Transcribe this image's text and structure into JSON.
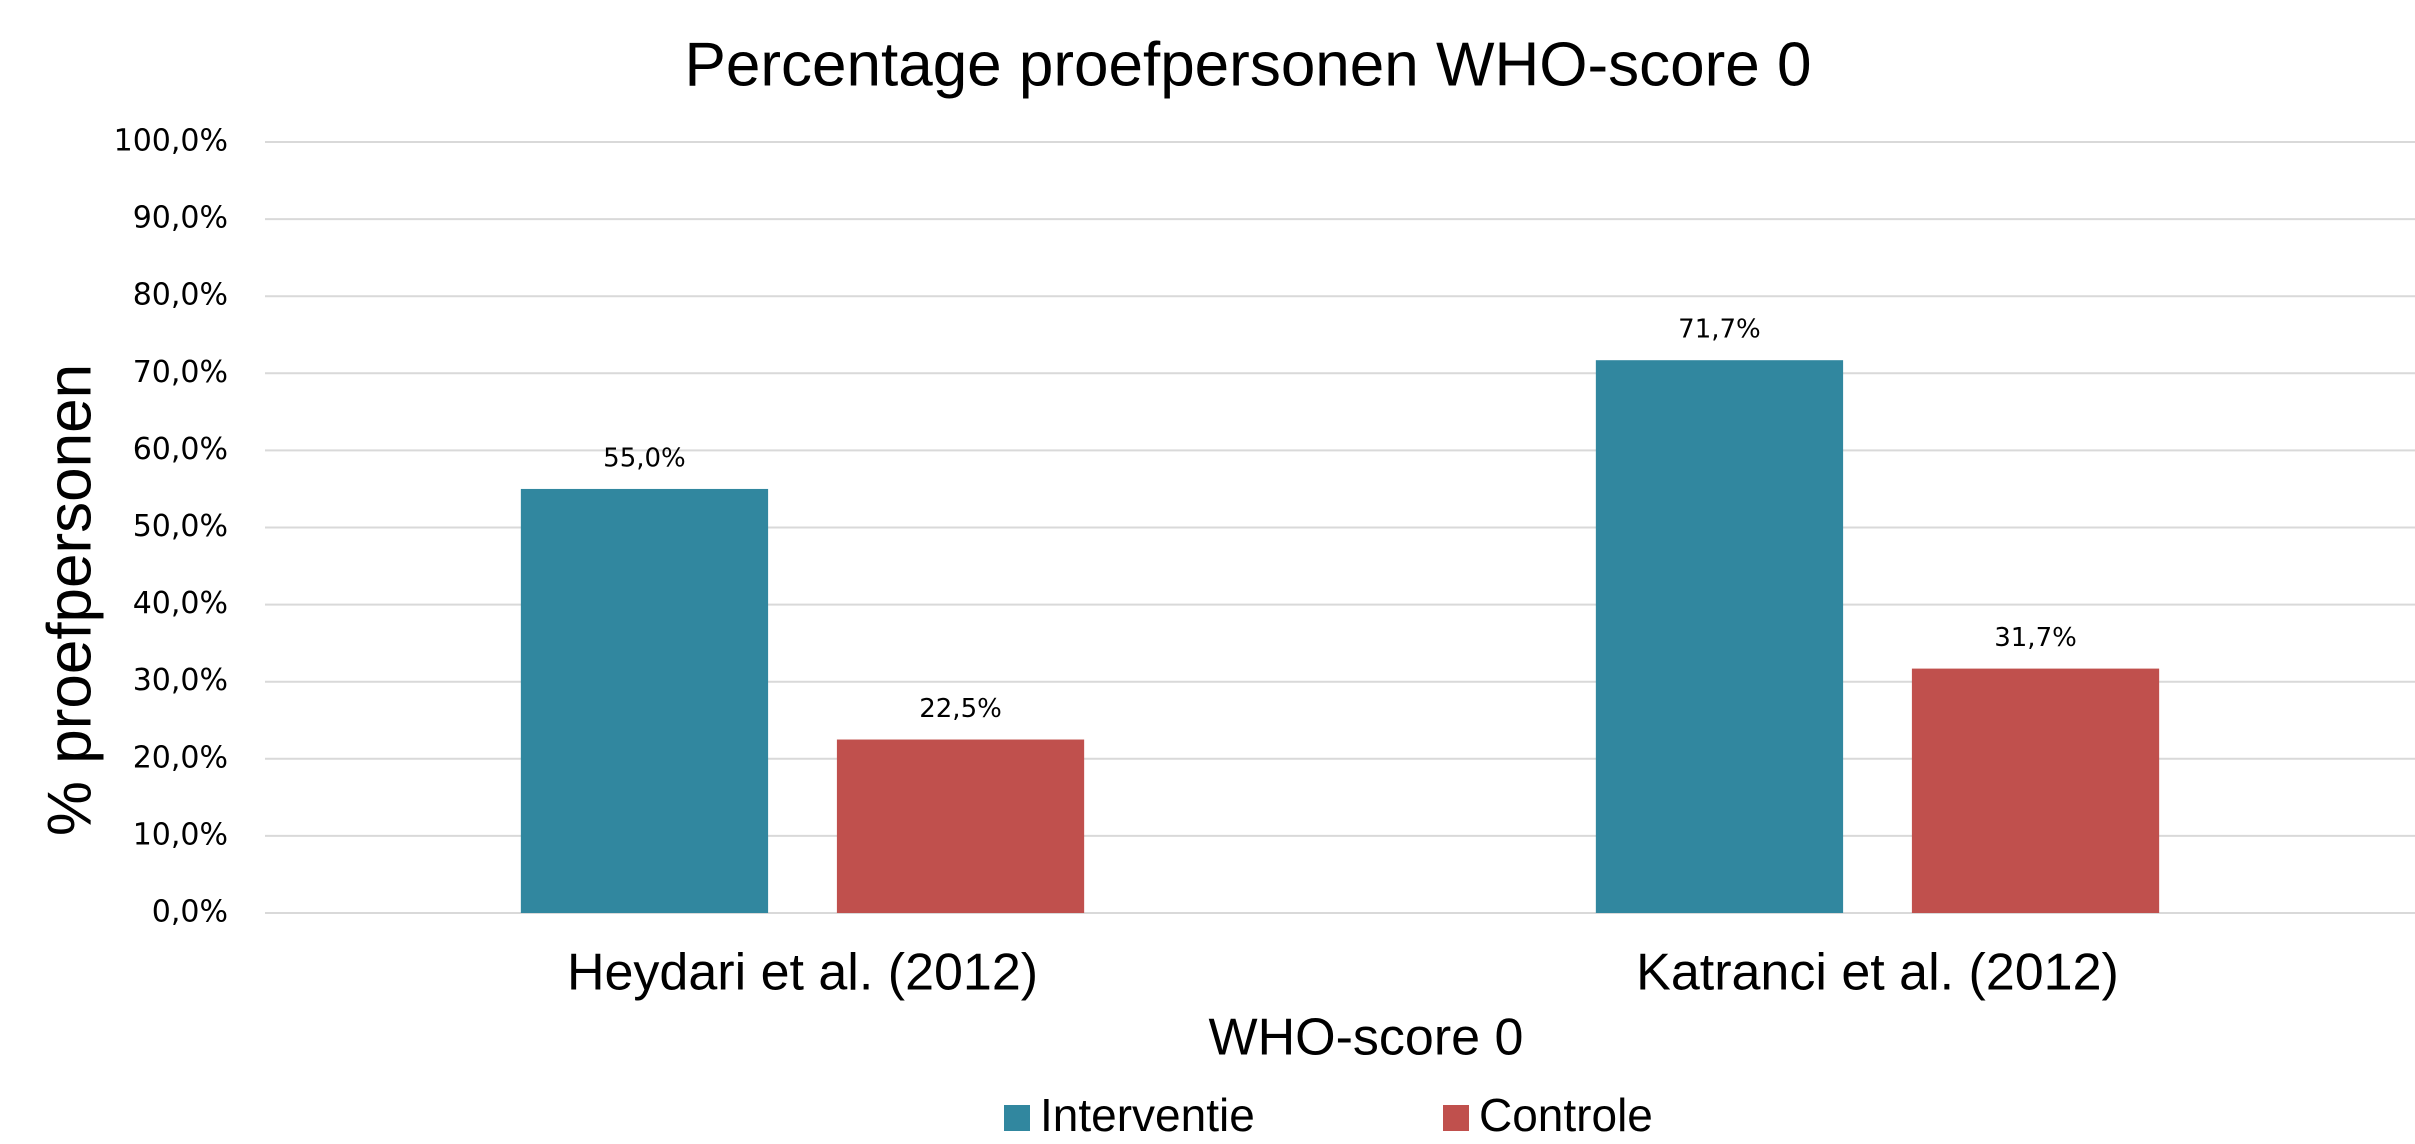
{
  "chart_data": {
    "type": "bar",
    "title": "Percentage proefpersonen WHO-score 0",
    "x_label": "WHO-score 0",
    "y_label": "% proefpersonen",
    "categories": [
      "Heydari et al. (2012)",
      "Katranci et al. (2012)"
    ],
    "series": [
      {
        "name": "Interventie",
        "color": "#31879f",
        "values": [
          55.0,
          71.7
        ],
        "value_labels": [
          "55,0%",
          "71,7%"
        ]
      },
      {
        "name": "Controle",
        "color": "#c0504d",
        "values": [
          22.5,
          31.7
        ],
        "value_labels": [
          "22,5%",
          "31,7%"
        ]
      }
    ],
    "ylim": [
      0,
      100
    ],
    "yticks": [
      {
        "value": 0,
        "label": "0,0%"
      },
      {
        "value": 10,
        "label": "10,0%"
      },
      {
        "value": 20,
        "label": "20,0%"
      },
      {
        "value": 30,
        "label": "30,0%"
      },
      {
        "value": 40,
        "label": "40,0%"
      },
      {
        "value": 50,
        "label": "50,0%"
      },
      {
        "value": 60,
        "label": "60,0%"
      },
      {
        "value": 70,
        "label": "70,0%"
      },
      {
        "value": 80,
        "label": "80,0%"
      },
      {
        "value": 90,
        "label": "90,0%"
      },
      {
        "value": 100,
        "label": "100,0%"
      }
    ],
    "grid": true,
    "legend": "bottom"
  }
}
